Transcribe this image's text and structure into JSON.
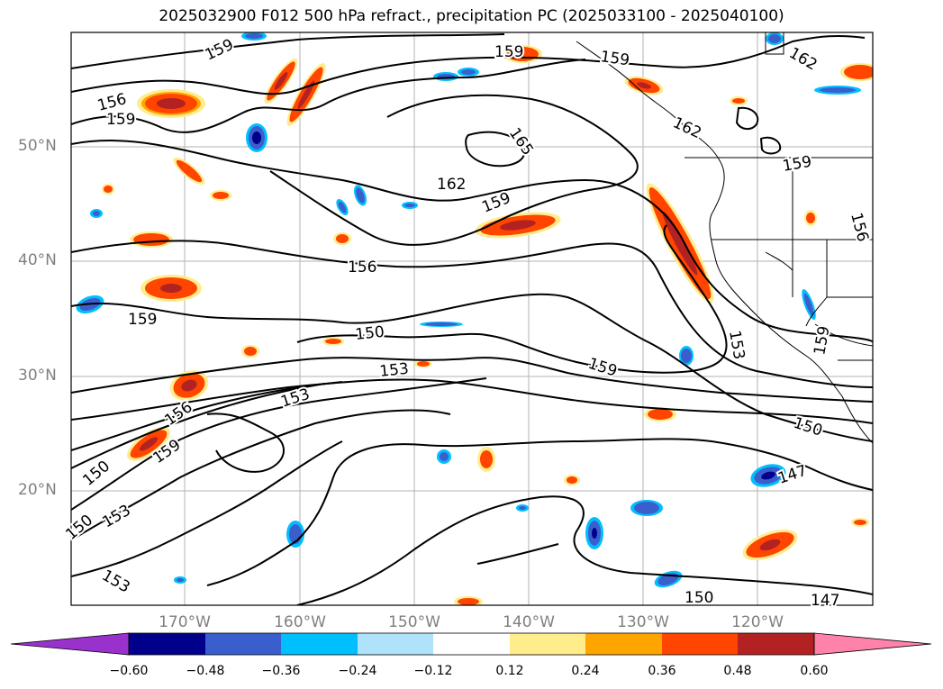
{
  "title": "2025032900 F012 500 hPa refract., precipitation PC (2025033100 - 2025040100)",
  "lat_labels": [
    "50°N",
    "40°N",
    "30°N",
    "20°N"
  ],
  "lon_labels": [
    "170°W",
    "160°W",
    "150°W",
    "140°W",
    "130°W",
    "120°W"
  ],
  "contour_labels": [
    "159",
    "159",
    "156",
    "159",
    "165",
    "162",
    "159",
    "156",
    "159",
    "150",
    "153",
    "153",
    "156",
    "159",
    "150",
    "150",
    "153",
    "153",
    "159",
    "153",
    "159",
    "150",
    "147",
    "150",
    "147",
    "162",
    "162",
    "159",
    "156",
    "159"
  ],
  "colorbar": {
    "ticks": [
      "−0.60",
      "−0.48",
      "−0.36",
      "−0.24",
      "−0.12",
      "0.12",
      "0.24",
      "0.36",
      "0.48",
      "0.60"
    ],
    "colors": [
      "#9932cc",
      "#00008b",
      "#3a5fcd",
      "#00bfff",
      "#afe2fb",
      "#ffffff",
      "#ffec8b",
      "#ffa500",
      "#ff4500",
      "#b22222",
      "#ff82ab"
    ]
  }
}
